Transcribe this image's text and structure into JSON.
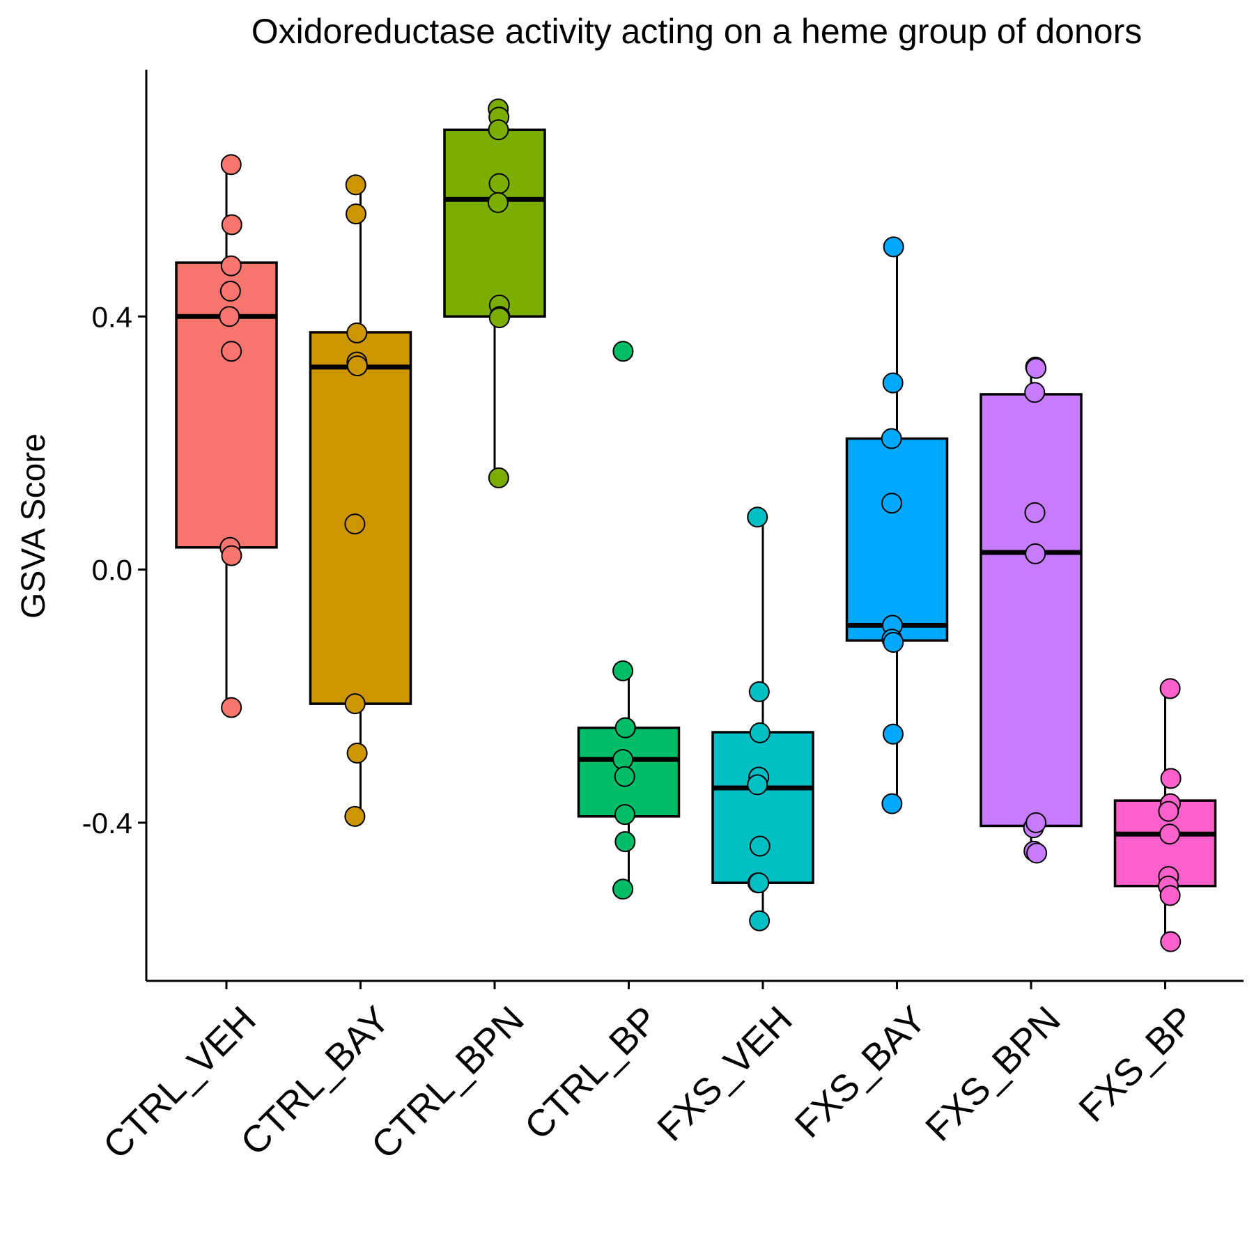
{
  "chart_data": {
    "type": "box",
    "title": "Oxidoreductase activity acting on a heme group of donors",
    "ylabel": "GSVA Score",
    "xlabel": "",
    "ylim": [
      -0.65,
      0.79
    ],
    "yticks": [
      -0.4,
      0.0,
      0.4
    ],
    "ytick_labels": [
      "-0.4",
      "0.0",
      "0.4"
    ],
    "grid": false,
    "legend": "none",
    "groups": [
      {
        "name": "CTRL_VEH",
        "color": "#F8766D",
        "box": {
          "whisker_low": -0.21,
          "q1": 0.035,
          "median": 0.4,
          "q3": 0.485,
          "whisker_high": 0.635
        },
        "points": [
          [
            0.605,
            0.64
          ],
          [
            0.62,
            0.545
          ],
          [
            0.605,
            0.48
          ],
          [
            0.59,
            0.44
          ],
          [
            0.565,
            0.4
          ],
          [
            0.61,
            0.345
          ],
          [
            0.58,
            0.035
          ],
          [
            0.615,
            0.022
          ],
          [
            0.61,
            -0.218
          ]
        ]
      },
      {
        "name": "CTRL_BAY",
        "color": "#CD9600",
        "box": {
          "whisker_low": -0.39,
          "q1": -0.212,
          "median": 0.32,
          "q3": 0.375,
          "whisker_high": 0.605
        },
        "points": [
          [
            0.395,
            0.608
          ],
          [
            0.4,
            0.562
          ],
          [
            0.42,
            0.374
          ],
          [
            0.42,
            0.328
          ],
          [
            0.43,
            0.322
          ],
          [
            0.375,
            0.072
          ],
          [
            0.38,
            -0.212
          ],
          [
            0.425,
            -0.29
          ],
          [
            0.375,
            -0.39
          ]
        ]
      },
      {
        "name": "CTRL_BPN",
        "color": "#7CAE00",
        "box": {
          "whisker_low": 0.145,
          "q1": 0.4,
          "median": 0.585,
          "q3": 0.695,
          "whisker_high": 0.725
        },
        "points": [
          [
            0.58,
            0.728
          ],
          [
            0.595,
            0.715
          ],
          [
            0.585,
            0.695
          ],
          [
            0.6,
            0.61
          ],
          [
            0.575,
            0.58
          ],
          [
            0.605,
            0.418
          ],
          [
            0.615,
            0.4
          ],
          [
            0.605,
            0.398
          ],
          [
            0.59,
            0.145
          ]
        ]
      },
      {
        "name": "CTRL_BP",
        "color": "#00BE67",
        "box": {
          "whisker_low": -0.505,
          "q1": -0.39,
          "median": -0.3,
          "q3": -0.25,
          "whisker_high": -0.162
        },
        "points": [
          [
            0.375,
            0.345
          ],
          [
            0.37,
            -0.16
          ],
          [
            0.43,
            -0.25
          ],
          [
            0.425,
            -0.25
          ],
          [
            0.37,
            -0.3
          ],
          [
            0.41,
            -0.327
          ],
          [
            0.415,
            -0.387
          ],
          [
            0.42,
            -0.43
          ],
          [
            0.37,
            -0.505
          ]
        ]
      },
      {
        "name": "FXS_VEH",
        "color": "#00BFC4",
        "box": {
          "whisker_low": -0.555,
          "q1": -0.495,
          "median": -0.345,
          "q3": -0.257,
          "whisker_high": 0.08
        },
        "points": [
          [
            0.38,
            0.083
          ],
          [
            0.42,
            -0.193
          ],
          [
            0.435,
            -0.258
          ],
          [
            0.41,
            -0.328
          ],
          [
            0.38,
            -0.34
          ],
          [
            0.435,
            -0.437
          ],
          [
            0.39,
            -0.495
          ],
          [
            0.41,
            -0.495
          ],
          [
            0.425,
            -0.555
          ]
        ]
      },
      {
        "name": "FXS_BAY",
        "color": "#00A9FF",
        "box": {
          "whisker_low": -0.365,
          "q1": -0.112,
          "median": -0.088,
          "q3": 0.207,
          "whisker_high": 0.51
        },
        "points": [
          [
            0.425,
            0.51
          ],
          [
            0.41,
            0.295
          ],
          [
            0.38,
            0.207
          ],
          [
            0.385,
            0.105
          ],
          [
            0.4,
            -0.088
          ],
          [
            0.39,
            -0.11
          ],
          [
            0.42,
            -0.115
          ],
          [
            0.415,
            -0.26
          ],
          [
            0.39,
            -0.37
          ]
        ]
      },
      {
        "name": "FXS_BPN",
        "color": "#C77CFF",
        "box": {
          "whisker_low": -0.44,
          "q1": -0.405,
          "median": 0.027,
          "q3": 0.277,
          "whisker_high": 0.325
        },
        "points": [
          [
            0.6,
            0.32
          ],
          [
            0.61,
            0.318
          ],
          [
            0.58,
            0.28
          ],
          [
            0.585,
            0.09
          ],
          [
            0.595,
            0.025
          ],
          [
            0.555,
            -0.408
          ],
          [
            0.61,
            -0.4
          ],
          [
            0.565,
            -0.445
          ],
          [
            0.625,
            -0.448
          ]
        ]
      },
      {
        "name": "FXS_BP",
        "color": "#FF61CC",
        "box": {
          "whisker_low": -0.585,
          "q1": -0.5,
          "median": -0.418,
          "q3": -0.365,
          "whisker_high": -0.188
        },
        "points": [
          [
            0.61,
            -0.188
          ],
          [
            0.625,
            -0.33
          ],
          [
            0.615,
            -0.37
          ],
          [
            0.575,
            -0.382
          ],
          [
            0.6,
            -0.418
          ],
          [
            0.575,
            -0.485
          ],
          [
            0.57,
            -0.5
          ],
          [
            0.61,
            -0.515
          ],
          [
            0.62,
            -0.588
          ]
        ]
      }
    ]
  }
}
